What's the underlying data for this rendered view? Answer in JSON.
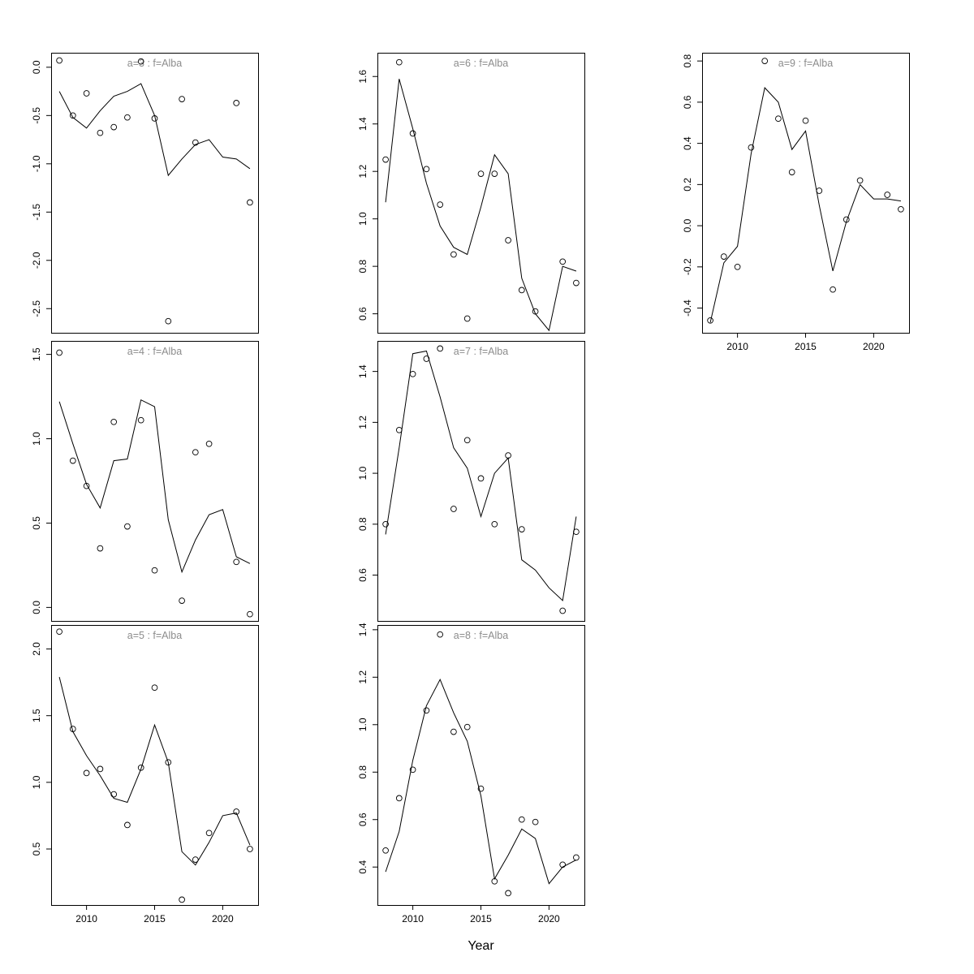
{
  "chart_data": {
    "type": "line",
    "title": "",
    "xlabel": "Year",
    "ylabel": "",
    "grid": false,
    "legend": "none",
    "marker": "open-circle",
    "x_ticks": [
      "2010",
      "2015",
      "2020"
    ],
    "x_range": [
      2007.4,
      2022.6
    ],
    "years": [
      2008,
      2009,
      2010,
      2011,
      2012,
      2013,
      2014,
      2015,
      2016,
      2017,
      2018,
      2019,
      2020,
      2021,
      2022
    ],
    "colors": {
      "line": "#000000",
      "point": "#000000",
      "title": "#8c8c8c",
      "axis": "#000000",
      "background": "#ffffff"
    },
    "panels": [
      {
        "id": "a3",
        "title": "a=3  :  f=Alba",
        "row": 0,
        "col": 0,
        "show_x_axis": false,
        "ylim": [
          -2.75,
          0.15
        ],
        "yticks": [
          "0.0",
          "-0.5",
          "-1.0",
          "-1.5",
          "-2.0",
          "-2.5"
        ],
        "points": [
          0.07,
          -0.5,
          -0.27,
          -0.68,
          -0.62,
          -0.52,
          0.06,
          -0.53,
          -2.63,
          -0.33,
          -0.78,
          null,
          null,
          -0.37,
          -1.4
        ],
        "line": [
          -0.25,
          -0.52,
          -0.63,
          -0.45,
          -0.3,
          -0.25,
          -0.17,
          -0.5,
          -1.12,
          -0.95,
          -0.8,
          -0.75,
          -0.93,
          -0.95,
          -1.05
        ]
      },
      {
        "id": "a6",
        "title": "a=6  :  f=Alba",
        "row": 0,
        "col": 1,
        "show_x_axis": false,
        "ylim": [
          0.52,
          1.7
        ],
        "yticks": [
          "0.6",
          "0.8",
          "1.0",
          "1.2",
          "1.4",
          "1.6"
        ],
        "points": [
          1.25,
          1.66,
          1.36,
          1.21,
          1.06,
          0.85,
          0.58,
          1.19,
          1.19,
          0.91,
          0.7,
          0.61,
          null,
          0.82,
          0.73
        ],
        "line": [
          1.07,
          1.59,
          1.38,
          1.15,
          0.97,
          0.88,
          0.85,
          1.05,
          1.27,
          1.19,
          0.75,
          0.6,
          0.53,
          0.8,
          0.78
        ]
      },
      {
        "id": "a9",
        "title": "a=9  :  f=Alba",
        "row": 0,
        "col": 2,
        "show_x_axis": true,
        "ylim": [
          -0.52,
          0.84
        ],
        "yticks": [
          "0.8",
          "0.6",
          "0.4",
          "0.2",
          "0.0",
          "-0.2",
          "-0.4"
        ],
        "points": [
          -0.46,
          -0.15,
          -0.2,
          0.38,
          0.8,
          0.52,
          0.26,
          0.51,
          0.17,
          -0.31,
          0.03,
          0.22,
          null,
          0.15,
          0.08
        ],
        "line": [
          -0.47,
          -0.18,
          -0.1,
          0.35,
          0.67,
          0.6,
          0.37,
          0.46,
          0.1,
          -0.22,
          0.02,
          0.2,
          0.13,
          0.13,
          0.12
        ]
      },
      {
        "id": "a4",
        "title": "a=4  :  f=Alba",
        "row": 1,
        "col": 0,
        "show_x_axis": false,
        "ylim": [
          -0.08,
          1.58
        ],
        "yticks": [
          "1.5",
          "1.0",
          "0.5",
          "0.0"
        ],
        "points": [
          1.51,
          0.87,
          0.72,
          0.35,
          1.1,
          0.48,
          1.11,
          0.22,
          null,
          0.04,
          0.92,
          0.97,
          null,
          0.27,
          -0.04
        ],
        "line": [
          1.22,
          0.97,
          0.73,
          0.59,
          0.87,
          0.88,
          1.23,
          1.19,
          0.52,
          0.21,
          0.4,
          0.55,
          0.58,
          0.3,
          0.26
        ]
      },
      {
        "id": "a7",
        "title": "a=7  :  f=Alba",
        "row": 1,
        "col": 1,
        "show_x_axis": false,
        "ylim": [
          0.42,
          1.52
        ],
        "yticks": [
          "1.4",
          "1.2",
          "1.0",
          "0.8",
          "0.6"
        ],
        "points": [
          0.8,
          1.17,
          1.39,
          1.45,
          1.49,
          0.86,
          1.13,
          0.98,
          0.8,
          1.07,
          0.78,
          null,
          null,
          0.46,
          0.77
        ],
        "line": [
          0.76,
          1.1,
          1.47,
          1.48,
          1.3,
          1.1,
          1.02,
          0.83,
          1.0,
          1.06,
          0.66,
          0.62,
          0.55,
          0.5,
          0.83
        ]
      },
      {
        "id": "a5",
        "title": "a=5  :  f=Alba",
        "row": 2,
        "col": 0,
        "show_x_axis": true,
        "ylim": [
          0.08,
          2.18
        ],
        "yticks": [
          "2.0",
          "1.5",
          "1.0",
          "0.5"
        ],
        "points": [
          2.13,
          1.4,
          1.07,
          1.1,
          0.91,
          0.68,
          1.11,
          1.71,
          1.15,
          0.12,
          0.42,
          0.62,
          null,
          0.78,
          0.5
        ],
        "line": [
          1.79,
          1.38,
          1.2,
          1.05,
          0.88,
          0.85,
          1.1,
          1.43,
          1.15,
          0.48,
          0.38,
          0.55,
          0.75,
          0.77,
          0.53
        ]
      },
      {
        "id": "a8",
        "title": "a=8  :  f=Alba",
        "row": 2,
        "col": 1,
        "show_x_axis": true,
        "ylim": [
          0.24,
          1.42
        ],
        "yticks": [
          "1.4",
          "1.2",
          "1.0",
          "0.8",
          "0.6",
          "0.4"
        ],
        "points": [
          0.47,
          0.69,
          0.81,
          1.06,
          1.38,
          0.97,
          0.99,
          0.73,
          0.34,
          0.29,
          0.6,
          0.59,
          null,
          0.41,
          0.44
        ],
        "line": [
          0.38,
          0.55,
          0.85,
          1.08,
          1.19,
          1.05,
          0.93,
          0.7,
          0.35,
          0.45,
          0.56,
          0.52,
          0.33,
          0.4,
          0.43
        ]
      }
    ]
  }
}
